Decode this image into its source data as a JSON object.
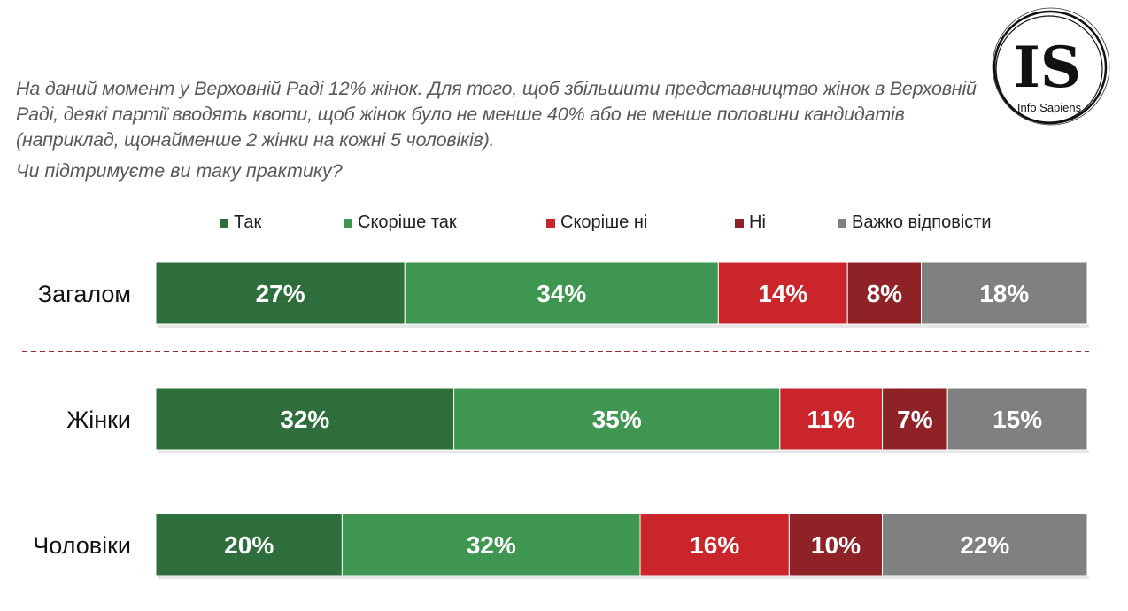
{
  "question": {
    "text": "На даний момент у Верховній Раді 12% жінок. Для того, щоб збільшити представництво жінок в Верховній Раді, деякі партії вводять квоти, щоб жінок було не менше 40% або не менше половини кандидатів (наприклад, щонайменше 2 жінки на кожні 5 чоловіків).",
    "prompt": "Чи підтримуєте ви таку практику?"
  },
  "logo": {
    "letters": "IS",
    "name": "Info Sapiens"
  },
  "chart_data": {
    "type": "bar",
    "orientation": "horizontal-stacked-100",
    "title": "Чи підтримуєте ви таку практику?",
    "legend_position": "top",
    "categories": [
      "Загалом",
      "Жінки",
      "Чоловіки"
    ],
    "series": [
      {
        "name": "Так",
        "color": "#2e6e3c",
        "values": [
          27,
          32,
          20
        ]
      },
      {
        "name": "Скоріше так",
        "color": "#3f9651",
        "values": [
          34,
          35,
          32
        ]
      },
      {
        "name": "Скоріше ні",
        "color": "#c9252b",
        "values": [
          14,
          11,
          16
        ]
      },
      {
        "name": "Ні",
        "color": "#8e2226",
        "values": [
          8,
          7,
          10
        ]
      },
      {
        "name": "Важко відповісти",
        "color": "#7f8080",
        "values": [
          18,
          15,
          22
        ]
      }
    ],
    "value_suffix": "%",
    "separator_after_category": "Загалом"
  }
}
